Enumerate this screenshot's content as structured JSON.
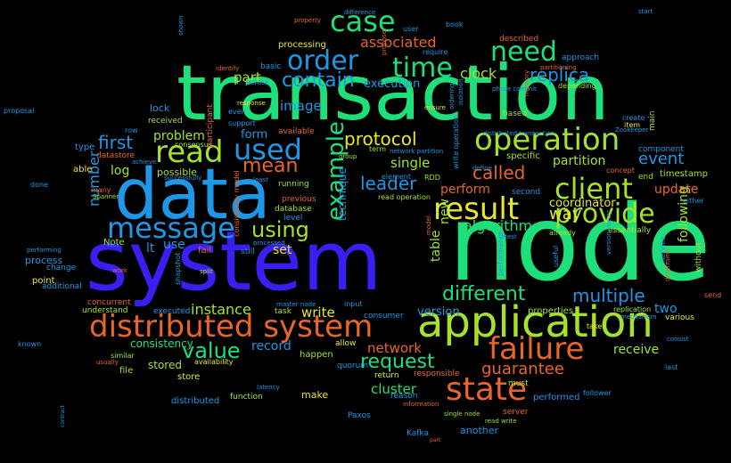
{
  "background": "#000000",
  "words": [
    {
      "text": "transaction",
      "color": "#1ee07a"
    },
    {
      "text": "node",
      "color": "#1ee07a"
    },
    {
      "text": "system",
      "color": "#3a1ff2"
    },
    {
      "text": "data",
      "color": "#1e98e6"
    },
    {
      "text": "application",
      "color": "#a6e22a"
    },
    {
      "text": "distributed system",
      "color": "#e8662a"
    },
    {
      "text": "message",
      "color": "#1e98e6"
    },
    {
      "text": "operation",
      "color": "#a6e22a"
    },
    {
      "text": "state",
      "color": "#e8662a"
    },
    {
      "text": "result",
      "color": "#e8e82a"
    },
    {
      "text": "failure",
      "color": "#e8662a"
    },
    {
      "text": "client",
      "color": "#a6e22a"
    },
    {
      "text": "provide",
      "color": "#a6e22a"
    },
    {
      "text": "read",
      "color": "#a6e22a"
    },
    {
      "text": "order",
      "color": "#1e98e6"
    },
    {
      "text": "time",
      "color": "#1ee07a"
    },
    {
      "text": "need",
      "color": "#1ee07a"
    },
    {
      "text": "case",
      "color": "#1ee07a"
    },
    {
      "text": "used",
      "color": "#1e98e6"
    },
    {
      "text": "example",
      "color": "#1ee07a"
    },
    {
      "text": "different",
      "color": "#1ee07a"
    },
    {
      "text": "request",
      "color": "#1ee07a"
    },
    {
      "text": "replica",
      "color": "#1e98e6"
    },
    {
      "text": "contain",
      "color": "#1e98e6"
    },
    {
      "text": "protocol",
      "color": "#e8e82a"
    },
    {
      "text": "multiple",
      "color": "#1e98e6"
    },
    {
      "text": "value",
      "color": "#1ee07a"
    },
    {
      "text": "using",
      "color": "#a6e22a"
    },
    {
      "text": "leader",
      "color": "#1e98e6"
    },
    {
      "text": "called",
      "color": "#e8662a"
    },
    {
      "text": "first",
      "color": "#1e98e6"
    },
    {
      "text": "mean",
      "color": "#e8662a"
    },
    {
      "text": "guarantee",
      "color": "#e8662a"
    },
    {
      "text": "event",
      "color": "#1e98e6"
    },
    {
      "text": "way",
      "color": "#e8e82a"
    },
    {
      "text": "number",
      "color": "#1e98e6"
    },
    {
      "text": "associated",
      "color": "#e8662a"
    },
    {
      "text": "algorithm",
      "color": "#1ee07a"
    },
    {
      "text": "clock",
      "color": "#a6e22a"
    },
    {
      "text": "execution",
      "color": "#1e98e6"
    },
    {
      "text": "partition",
      "color": "#a6e22a"
    },
    {
      "text": "update",
      "color": "#e8662a"
    },
    {
      "text": "instance",
      "color": "#a6e22a"
    },
    {
      "text": "record",
      "color": "#1e98e6"
    },
    {
      "text": "network",
      "color": "#e8662a"
    },
    {
      "text": "cluster",
      "color": "#1ee07a"
    },
    {
      "text": "receive",
      "color": "#a6e22a"
    },
    {
      "text": "two",
      "color": "#1e98e6"
    },
    {
      "text": "write",
      "color": "#e8e82a"
    },
    {
      "text": "single",
      "color": "#a6e22a"
    },
    {
      "text": "perform",
      "color": "#e8662a"
    },
    {
      "text": "image",
      "color": "#1e98e6"
    },
    {
      "text": "part",
      "color": "#a6e22a"
    },
    {
      "text": "form",
      "color": "#1e98e6"
    },
    {
      "text": "problem",
      "color": "#a6e22a"
    },
    {
      "text": "log",
      "color": "#a6e22a"
    },
    {
      "text": "lt",
      "color": "#1e98e6"
    },
    {
      "text": "use",
      "color": "#1e98e6"
    },
    {
      "text": "set",
      "color": "#e8e82a"
    },
    {
      "text": "consistency",
      "color": "#1ee07a"
    },
    {
      "text": "coordinator",
      "color": "#e8e82a"
    },
    {
      "text": "version",
      "color": "#1e98e6"
    },
    {
      "text": "following",
      "color": "#a6e22a"
    },
    {
      "text": "technique",
      "color": "#1e98e6"
    },
    {
      "text": "new",
      "color": "#a6e22a"
    },
    {
      "text": "table",
      "color": "#a6e22a"
    },
    {
      "text": "stored",
      "color": "#a6e22a"
    },
    {
      "text": "process",
      "color": "#1e98e6"
    },
    {
      "text": "distributed",
      "color": "#1e98e6"
    },
    {
      "text": "another",
      "color": "#1e98e6"
    },
    {
      "text": "make",
      "color": "#e8e82a"
    },
    {
      "text": "store",
      "color": "#e8e82a"
    },
    {
      "text": "happen",
      "color": "#a6e22a"
    },
    {
      "text": "timestamp",
      "color": "#a6e22a"
    },
    {
      "text": "lock",
      "color": "#1e98e6"
    },
    {
      "text": "possible",
      "color": "#a6e22a"
    },
    {
      "text": "able",
      "color": "#e8e82a"
    },
    {
      "text": "Note",
      "color": "#a6e22a"
    },
    {
      "text": "type",
      "color": "#1e98e6"
    },
    {
      "text": "properties",
      "color": "#a6e22a"
    },
    {
      "text": "processing",
      "color": "#e8e82a"
    },
    {
      "text": "performed",
      "color": "#1e98e6"
    },
    {
      "text": "file",
      "color": "#a6e22a"
    },
    {
      "text": "point",
      "color": "#e8e82a"
    },
    {
      "text": "change",
      "color": "#1e98e6"
    },
    {
      "text": "additional",
      "color": "#1e98e6"
    },
    {
      "text": "reason",
      "color": "#1e98e6"
    },
    {
      "text": "responsible",
      "color": "#e8662a"
    },
    {
      "text": "server",
      "color": "#e8662a"
    },
    {
      "text": "fail",
      "color": "#e8662a"
    },
    {
      "text": "still",
      "color": "#1e98e6"
    },
    {
      "text": "allow",
      "color": "#e8e82a"
    },
    {
      "text": "return",
      "color": "#e8e82a"
    },
    {
      "text": "essentially",
      "color": "#a6e22a"
    },
    {
      "text": "specific",
      "color": "#a6e22a"
    },
    {
      "text": "based",
      "color": "#a6e22a"
    },
    {
      "text": "approach",
      "color": "#1e98e6"
    },
    {
      "text": "quorum",
      "color": "#1e98e6"
    },
    {
      "text": "consumer",
      "color": "#1e98e6"
    },
    {
      "text": "database",
      "color": "#a6e22a"
    },
    {
      "text": "running",
      "color": "#a6e22a"
    },
    {
      "text": "previous",
      "color": "#e8662a"
    },
    {
      "text": "level",
      "color": "#1e98e6"
    },
    {
      "text": "available",
      "color": "#e8662a"
    },
    {
      "text": "received",
      "color": "#a6e22a"
    },
    {
      "text": "datastore",
      "color": "#e8662a"
    },
    {
      "text": "concurrent",
      "color": "#e8662a"
    },
    {
      "text": "understand",
      "color": "#a6e22a"
    },
    {
      "text": "executed",
      "color": "#1e98e6"
    },
    {
      "text": "task",
      "color": "#a6e22a"
    },
    {
      "text": "must",
      "color": "#a6e22a"
    },
    {
      "text": "function",
      "color": "#a6e22a"
    },
    {
      "text": "Paxos",
      "color": "#1e98e6"
    },
    {
      "text": "Kafka",
      "color": "#1e98e6"
    },
    {
      "text": "known",
      "color": "#1e98e6"
    },
    {
      "text": "similar",
      "color": "#a6e22a"
    },
    {
      "text": "availability",
      "color": "#e8e82a"
    },
    {
      "text": "replication",
      "color": "#a6e22a"
    },
    {
      "text": "take",
      "color": "#e8e82a"
    },
    {
      "text": "various",
      "color": "#e8e82a"
    },
    {
      "text": "last",
      "color": "#1e98e6"
    },
    {
      "text": "follower",
      "color": "#1e98e6"
    },
    {
      "text": "send",
      "color": "#e8662a"
    },
    {
      "text": "without",
      "color": "#a6e22a"
    },
    {
      "text": "end",
      "color": "#a6e22a"
    },
    {
      "text": "component",
      "color": "#1e98e6"
    },
    {
      "text": "concept",
      "color": "#e8662a"
    },
    {
      "text": "item",
      "color": "#e8e82a"
    },
    {
      "text": "create",
      "color": "#1e98e6"
    },
    {
      "text": "main",
      "color": "#a6e22a"
    },
    {
      "text": "either",
      "color": "#1e98e6"
    },
    {
      "text": "already",
      "color": "#a6e22a"
    },
    {
      "text": "depending",
      "color": "#a6e22a"
    },
    {
      "text": "described",
      "color": "#e8662a"
    },
    {
      "text": "book",
      "color": "#1e98e6"
    },
    {
      "text": "user",
      "color": "#1e98e6"
    },
    {
      "text": "require",
      "color": "#1e98e6"
    },
    {
      "text": "property",
      "color": "#e8662a"
    },
    {
      "text": "difference",
      "color": "#1e98e6"
    },
    {
      "text": "basic",
      "color": "#1e98e6"
    },
    {
      "text": "across",
      "color": "#1e98e6"
    },
    {
      "text": "identify",
      "color": "#e8662a"
    },
    {
      "text": "support",
      "color": "#1e98e6"
    },
    {
      "text": "even",
      "color": "#1e98e6"
    },
    {
      "text": "consensus",
      "color": "#a6e22a"
    },
    {
      "text": "row",
      "color": "#1e98e6"
    },
    {
      "text": "many",
      "color": "#e8662a"
    },
    {
      "text": "done",
      "color": "#1e98e6"
    },
    {
      "text": "performing",
      "color": "#1e98e6"
    },
    {
      "text": "work",
      "color": "#e8662a"
    },
    {
      "text": "proposal",
      "color": "#1e98e6"
    },
    {
      "text": "start",
      "color": "#1e98e6"
    },
    {
      "text": "participant",
      "color": "#e8662a"
    },
    {
      "text": "consistency model",
      "color": "#e8662a"
    },
    {
      "text": "snapshot",
      "color": "#1e98e6"
    },
    {
      "text": "RDD",
      "color": "#a6e22a"
    },
    {
      "text": "element",
      "color": "#1e98e6"
    },
    {
      "text": "group",
      "color": "#a6e22a"
    },
    {
      "text": "term",
      "color": "#a6e22a"
    },
    {
      "text": "network partition",
      "color": "#1e98e6"
    },
    {
      "text": "read operation",
      "color": "#a6e22a"
    },
    {
      "text": "define",
      "color": "#1e98e6"
    },
    {
      "text": "second",
      "color": "#1e98e6"
    },
    {
      "text": "write operation",
      "color": "#1e98e6"
    },
    {
      "text": "model",
      "color": "#e8662a"
    },
    {
      "text": "performance",
      "color": "#1e98e6"
    },
    {
      "text": "useful",
      "color": "#1e98e6"
    },
    {
      "text": "service",
      "color": "#1e98e6"
    },
    {
      "text": "latency",
      "color": "#1e98e6"
    },
    {
      "text": "single node",
      "color": "#a6e22a"
    },
    {
      "text": "read write",
      "color": "#a6e22a"
    },
    {
      "text": "information",
      "color": "#e8662a"
    },
    {
      "text": "master node",
      "color": "#1e98e6"
    },
    {
      "text": "input",
      "color": "#1e98e6"
    },
    {
      "text": "processed",
      "color": "#1e98e6"
    },
    {
      "text": "mechanism",
      "color": "#1e98e6"
    },
    {
      "text": "consist",
      "color": "#1e98e6"
    },
    {
      "text": "phase commit",
      "color": "#1e98e6"
    },
    {
      "text": "distributed transaction",
      "color": "#1e98e6"
    },
    {
      "text": "Zookeeper",
      "color": "#1e98e6"
    },
    {
      "text": "version vector",
      "color": "#1e98e6"
    },
    {
      "text": "shown",
      "color": "#1e98e6"
    },
    {
      "text": "proposer",
      "color": "#e8662a"
    },
    {
      "text": "response",
      "color": "#e8e82a"
    },
    {
      "text": "ensure",
      "color": "#e8e82a"
    },
    {
      "text": "Spanner",
      "color": "#a6e22a"
    },
    {
      "text": "achieve",
      "color": "#1e98e6"
    },
    {
      "text": "fact",
      "color": "#1e98e6"
    },
    {
      "text": "split",
      "color": "#a6e22a"
    },
    {
      "text": "usually",
      "color": "#e8662a"
    },
    {
      "text": "least",
      "color": "#1e98e6"
    },
    {
      "text": "successfully",
      "color": "#1e98e6"
    },
    {
      "text": "partitioning",
      "color": "#e8662a"
    },
    {
      "text": "memory",
      "color": "#e8662a"
    },
    {
      "text": "latest",
      "color": "#1e98e6"
    },
    {
      "text": "determine",
      "color": "#e8662a"
    },
    {
      "text": "isolation",
      "color": "#1e98e6"
    },
    {
      "text": "ordering",
      "color": "#1e98e6"
    },
    {
      "text": "contract",
      "color": "#1e98e6"
    },
    {
      "text": "part",
      "color": "#e8662a"
    }
  ]
}
